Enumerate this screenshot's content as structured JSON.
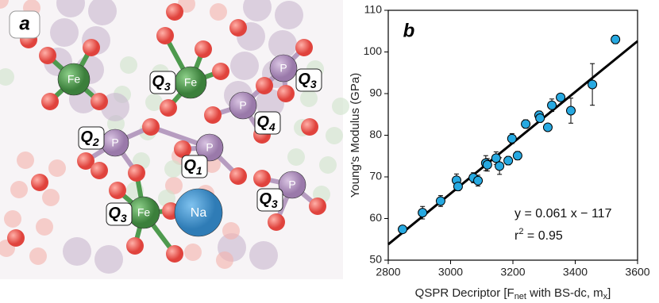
{
  "panel_a": {
    "letter": "a",
    "atom_labels": [
      "Fe",
      "Fe",
      "Fe",
      "P",
      "P",
      "P",
      "P",
      "P",
      "Na"
    ],
    "q_labels": [
      {
        "text": "Q",
        "sub": "3"
      },
      {
        "text": "Q",
        "sub": "3"
      },
      {
        "text": "Q",
        "sub": "4"
      },
      {
        "text": "Q",
        "sub": "2"
      },
      {
        "text": "Q",
        "sub": "1"
      },
      {
        "text": "Q",
        "sub": "3"
      },
      {
        "text": "Q",
        "sub": "3"
      }
    ]
  },
  "chart_data": {
    "type": "scatter",
    "letter": "b",
    "xlabel_parts": [
      "QSPR Decriptor [F",
      "net",
      " with BS-dc, m",
      "x",
      "]"
    ],
    "ylabel": "Young's Modulus (GPa)",
    "xlim": [
      2800,
      3600
    ],
    "xticks": [
      2800,
      3000,
      3200,
      3400,
      3600
    ],
    "ylim": [
      50,
      110
    ],
    "yticks": [
      50,
      60,
      70,
      80,
      90,
      100,
      110
    ],
    "series": [
      {
        "color": "#27a9e1",
        "x": [
          2846,
          2910,
          2968,
          3019,
          3024,
          3073,
          3088,
          3113,
          3118,
          3146,
          3157,
          3185,
          3197,
          3215,
          3241,
          3284,
          3287,
          3312,
          3325,
          3353,
          3386,
          3455,
          3529
        ],
        "y": [
          57.4,
          61.4,
          64.2,
          69.2,
          67.7,
          69.8,
          69.1,
          73.3,
          72.9,
          74.5,
          72.6,
          73.9,
          79.2,
          75.1,
          82.7,
          84.8,
          84.1,
          81.9,
          87.2,
          89.1,
          85.9,
          92.2,
          103.0
        ],
        "err": [
          0.6,
          1.5,
          1.3,
          1.5,
          1.0,
          1.2,
          1.3,
          1.8,
          1.5,
          1.5,
          2.0,
          1.0,
          1.2,
          1.0,
          1.0,
          1.0,
          1.0,
          0.8,
          1.5,
          0.8,
          3.0,
          5.0,
          1.0
        ]
      }
    ],
    "fit": {
      "slope": 0.061,
      "intercept": -117,
      "color": "#000000"
    },
    "fit_label": "y = 0.061 x − 117",
    "r2_parts": [
      "r",
      "2",
      " = 0.95"
    ]
  }
}
